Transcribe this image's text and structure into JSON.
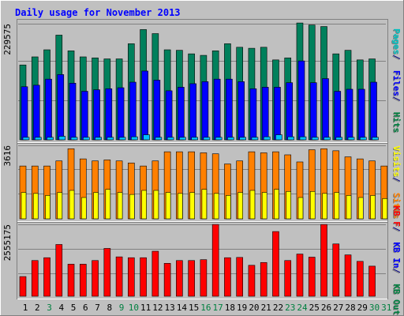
{
  "chart_data": {
    "type": "bar",
    "title": "Daily usage for November 2013",
    "categories": [
      "1",
      "2",
      "3",
      "4",
      "5",
      "6",
      "7",
      "8",
      "9",
      "10",
      "11",
      "12",
      "13",
      "14",
      "15",
      "16",
      "17",
      "18",
      "19",
      "20",
      "21",
      "22",
      "23",
      "24",
      "25",
      "26",
      "27",
      "28",
      "29",
      "30",
      "31"
    ],
    "weekend_days": [
      "3",
      "9",
      "10",
      "16",
      "17",
      "23",
      "24",
      "30",
      "31"
    ],
    "panels": [
      {
        "id": "top",
        "max_label": "229575",
        "ymax": 229575,
        "ylabel_parts": [
          {
            "text": "Pages",
            "color": "#00c0c0"
          },
          {
            "text": " / ",
            "color": "#000080"
          },
          {
            "text": "Files",
            "color": "#0000ff"
          },
          {
            "text": " / ",
            "color": "#000080"
          },
          {
            "text": "Hits",
            "color": "#008040"
          }
        ],
        "series": [
          {
            "name": "Hits",
            "color": "#00805c",
            "values": [
              148000,
              164000,
              178000,
              207000,
              176000,
              164000,
              162000,
              160000,
              160000,
              190000,
              218000,
              210000,
              178000,
              177000,
              170000,
              167000,
              176000,
              190000,
              183000,
              181000,
              183000,
              158000,
              162000,
              231000,
              227000,
              224000,
              170000,
              177000,
              158000,
              160000,
              0
            ]
          },
          {
            "name": "Files",
            "color": "#0000ff",
            "values": [
              105000,
              108000,
              120000,
              129000,
              112000,
              96000,
              99000,
              101000,
              103000,
              114000,
              136000,
              118000,
              97000,
              104000,
              111000,
              115000,
              120000,
              120000,
              115000,
              101000,
              104000,
              104000,
              113000,
              156000,
              113000,
              121000,
              96000,
              100000,
              100000,
              114000,
              0
            ]
          },
          {
            "name": "Pages",
            "color": "#00c0ff",
            "values": [
              5000,
              5000,
              5000,
              7000,
              5000,
              5000,
              5000,
              5000,
              5000,
              6000,
              10000,
              5000,
              5000,
              5000,
              5000,
              5000,
              5000,
              5000,
              5000,
              5000,
              6000,
              10000,
              6000,
              6000,
              5000,
              5000,
              5000,
              5000,
              5000,
              5000,
              0
            ]
          }
        ]
      },
      {
        "id": "mid",
        "max_label": "3616",
        "ymax": 3616,
        "ylabel_parts": [
          {
            "text": "Visits",
            "color": "#ffff00"
          },
          {
            "text": " / ",
            "color": "#000080"
          },
          {
            "text": "Sites",
            "color": "#ff8000"
          }
        ],
        "series": [
          {
            "name": "Sites",
            "color": "#ff8000",
            "values": [
              2600,
              2600,
              2600,
              2850,
              3450,
              2950,
              2850,
              2900,
              2850,
              2750,
              2600,
              2850,
              3300,
              3300,
              3300,
              3250,
              3200,
              2700,
              2850,
              3300,
              3250,
              3300,
              3150,
              2800,
              3400,
              3450,
              3350,
              3050,
              2950,
              2850,
              2600
            ]
          },
          {
            "name": "Visits",
            "color": "#ffff00",
            "values": [
              1300,
              1250,
              1150,
              1300,
              1400,
              1050,
              1300,
              1450,
              1300,
              1200,
              1400,
              1400,
              1300,
              1250,
              1300,
              1450,
              1250,
              1150,
              1300,
              1400,
              1300,
              1450,
              1350,
              1050,
              1350,
              1250,
              1300,
              1150,
              1050,
              1150,
              1000
            ]
          }
        ]
      },
      {
        "id": "bot",
        "max_label": "2555175",
        "ymax": 2555175,
        "ylabel_parts": [
          {
            "text": "KB F",
            "color": "#ff0000"
          },
          {
            "text": " / ",
            "color": "#000080"
          },
          {
            "text": "KB In",
            "color": "#0000ff"
          },
          {
            "text": " / ",
            "color": "#000080"
          },
          {
            "text": "KB Out",
            "color": "#008040"
          }
        ],
        "series": [
          {
            "name": "KB F",
            "color": "#ff0000",
            "values": [
              700000,
              1270000,
              1370000,
              1840000,
              1140000,
              1140000,
              1270000,
              1700000,
              1400000,
              1370000,
              1370000,
              1600000,
              1170000,
              1270000,
              1270000,
              1300000,
              2550000,
              1370000,
              1380000,
              1100000,
              1200000,
              2300000,
              1270000,
              1500000,
              1390000,
              2550000,
              1860000,
              1470000,
              1240000,
              1070000,
              0
            ]
          }
        ]
      }
    ]
  }
}
